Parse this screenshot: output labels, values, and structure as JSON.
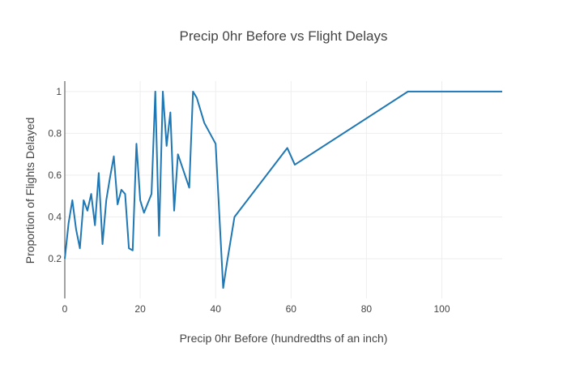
{
  "chart_data": {
    "type": "line",
    "title": "Precip 0hr Before vs Flight Delays",
    "xlabel": "Precip 0hr Before (hundredths of an inch)",
    "ylabel": "Proportion of Flights Delayed",
    "xlim": [
      0,
      116
    ],
    "ylim": [
      0.01,
      1.05
    ],
    "x_ticks": [
      0,
      20,
      40,
      60,
      80,
      100
    ],
    "y_ticks": [
      0.2,
      0.4,
      0.6,
      0.8,
      1
    ],
    "grid": true,
    "line_color": "#1f77b4",
    "series": [
      {
        "x": [
          0,
          1,
          2,
          3,
          4,
          5,
          6,
          7,
          8,
          9,
          10,
          11,
          12,
          13,
          14,
          15,
          16,
          17,
          18,
          19,
          20,
          21,
          23,
          24,
          25,
          26,
          27,
          28,
          29,
          30,
          33,
          34,
          35,
          37,
          40,
          42,
          43,
          45,
          59,
          61,
          91,
          116
        ],
        "y": [
          0.2,
          0.37,
          0.48,
          0.34,
          0.25,
          0.48,
          0.43,
          0.51,
          0.36,
          0.61,
          0.27,
          0.48,
          0.59,
          0.69,
          0.46,
          0.53,
          0.51,
          0.25,
          0.24,
          0.75,
          0.48,
          0.42,
          0.51,
          1.0,
          0.31,
          1.0,
          0.74,
          0.9,
          0.43,
          0.7,
          0.54,
          1.0,
          0.97,
          0.85,
          0.75,
          0.06,
          0.18,
          0.4,
          0.73,
          0.65,
          1.0,
          1.0
        ]
      }
    ]
  }
}
